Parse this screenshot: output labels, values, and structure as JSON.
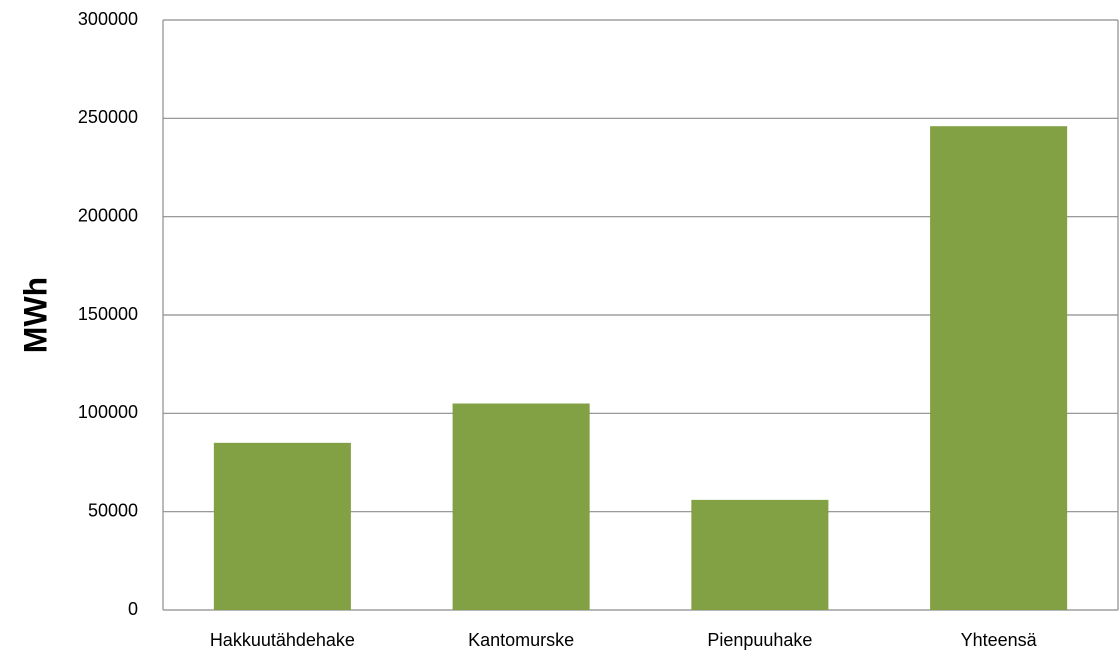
{
  "chart_data": {
    "type": "bar",
    "y_label": "MWh",
    "categories": [
      "Hakkuutähdehake",
      "Kantomurske",
      "Pienpuuhake",
      "Yhteensä"
    ],
    "values": [
      85000,
      105000,
      56000,
      246000
    ],
    "color": "#82a044",
    "ylim": [
      0,
      300000
    ],
    "yticks": [
      0,
      50000,
      100000,
      150000,
      200000,
      250000,
      300000
    ],
    "grid": true
  }
}
